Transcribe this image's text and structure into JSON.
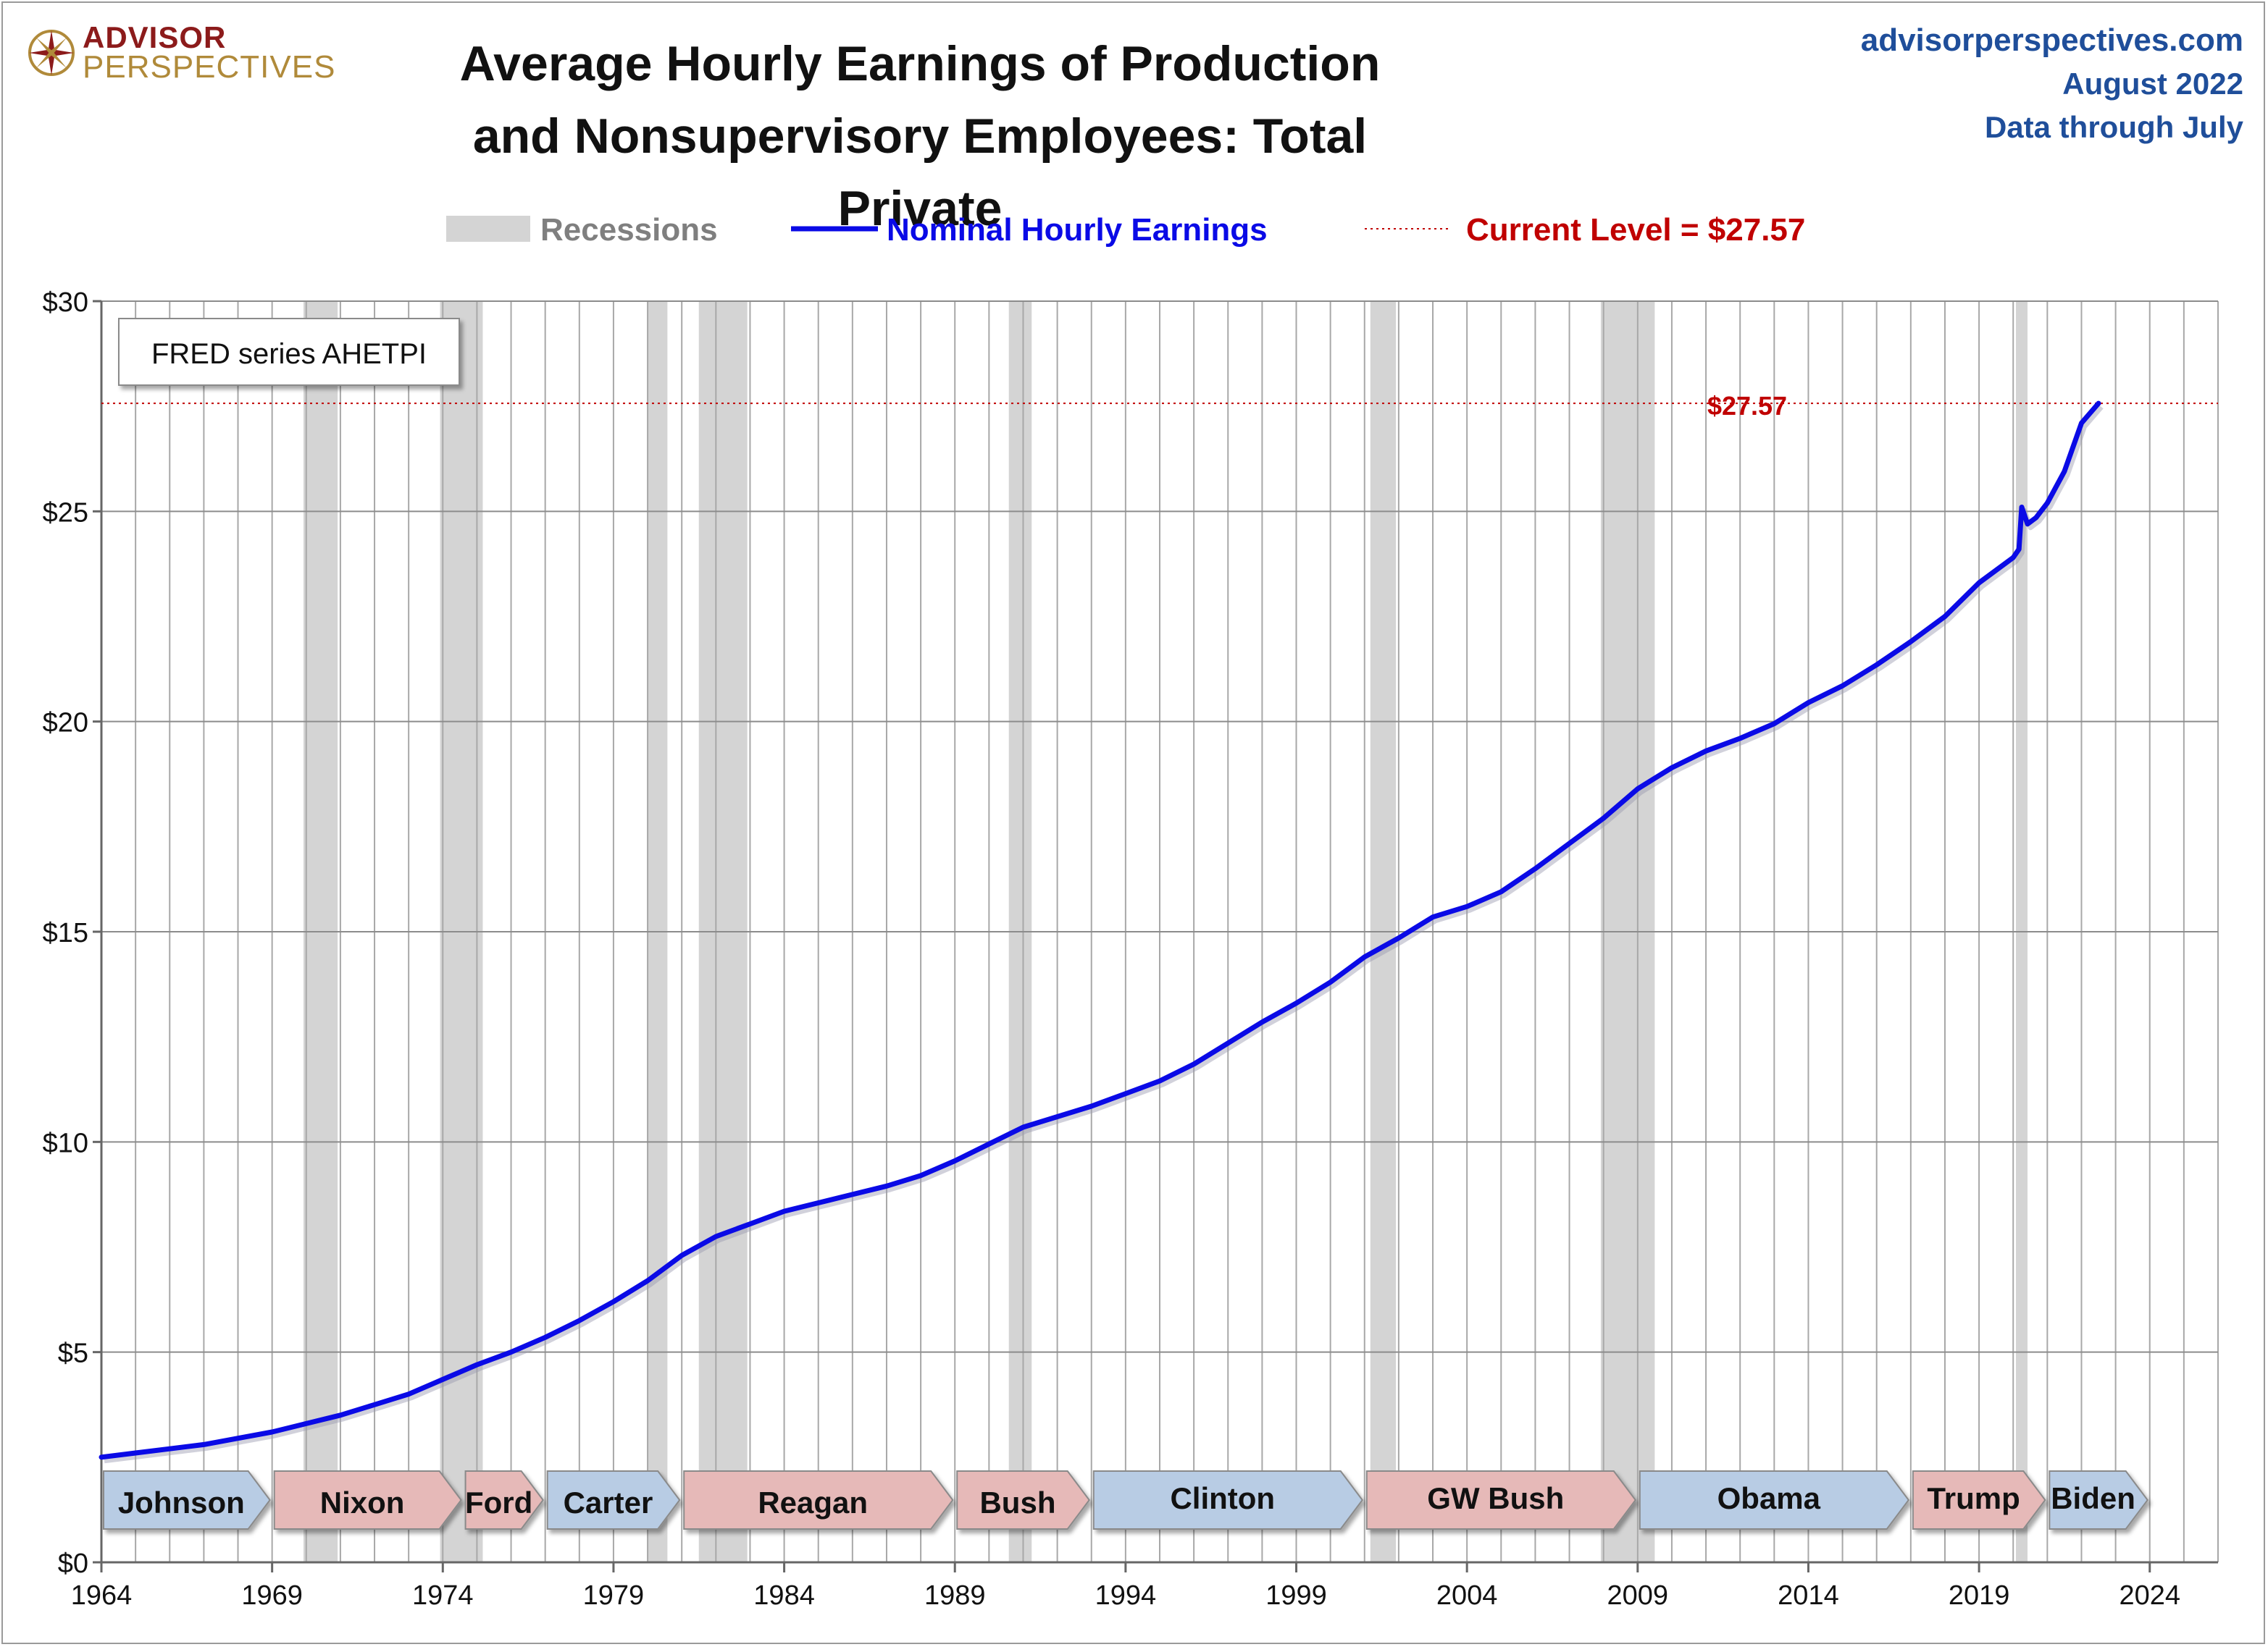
{
  "logo": {
    "line1": "ADVISOR",
    "line2": "PERSPECTIVES"
  },
  "title": {
    "line1": "Average Hourly Earnings of Production",
    "line2": "and Nonsupervisory Employees: Total Private"
  },
  "meta": {
    "site": "advisorperspectives.com",
    "date": "August 2022",
    "data_through": "Data through July"
  },
  "colors": {
    "series": "#0a0ae6",
    "recession": "#d4d4d4",
    "current": "#c00000",
    "blue_president": "#b8cce4",
    "red_president": "#e6b9b8",
    "meta": "#1f4e9a"
  },
  "chart_data": {
    "type": "line",
    "title": "Average Hourly Earnings of Production and Nonsupervisory Employees: Total Private",
    "xlabel": "",
    "ylabel": "",
    "xlim": [
      1964,
      2026
    ],
    "ylim": [
      0,
      30
    ],
    "x_ticks": [
      1964,
      1969,
      1974,
      1979,
      1984,
      1989,
      1994,
      1999,
      2004,
      2009,
      2014,
      2019,
      2024
    ],
    "y_ticks": [
      {
        "value": 0,
        "label": "$0"
      },
      {
        "value": 5,
        "label": "$5"
      },
      {
        "value": 10,
        "label": "$10"
      },
      {
        "value": 15,
        "label": "$15"
      },
      {
        "value": 20,
        "label": "$20"
      },
      {
        "value": 25,
        "label": "$25"
      },
      {
        "value": 30,
        "label": "$30"
      }
    ],
    "vertical_grid_every_years": 1,
    "legend": {
      "recessions": "Recessions",
      "series": "Nominal Hourly Earnings",
      "current": "Current Level = $27.57"
    },
    "source_box": "FRED series AHETPI",
    "current_level": {
      "value": 27.57,
      "label": "$27.57"
    },
    "recessions": [
      [
        1969.92,
        1970.92
      ],
      [
        1973.92,
        1975.17
      ],
      [
        1980.0,
        1980.58
      ],
      [
        1981.5,
        1982.92
      ],
      [
        1990.58,
        1991.25
      ],
      [
        2001.17,
        2001.92
      ],
      [
        2007.92,
        2009.5
      ],
      [
        2020.08,
        2020.42
      ]
    ],
    "series": [
      {
        "name": "Nominal Hourly Earnings",
        "x": [
          1964.0,
          1965.0,
          1966.0,
          1967.0,
          1968.0,
          1969.0,
          1970.0,
          1971.0,
          1972.0,
          1973.0,
          1974.0,
          1975.0,
          1976.0,
          1977.0,
          1978.0,
          1979.0,
          1980.0,
          1981.0,
          1982.0,
          1983.0,
          1984.0,
          1985.0,
          1986.0,
          1987.0,
          1988.0,
          1989.0,
          1990.0,
          1991.0,
          1992.0,
          1993.0,
          1994.0,
          1995.0,
          1996.0,
          1997.0,
          1998.0,
          1999.0,
          2000.0,
          2001.0,
          2002.0,
          2003.0,
          2004.0,
          2005.0,
          2006.0,
          2007.0,
          2008.0,
          2009.0,
          2010.0,
          2011.0,
          2012.0,
          2013.0,
          2014.0,
          2015.0,
          2016.0,
          2017.0,
          2018.0,
          2019.0,
          2020.0,
          2020.17,
          2020.25,
          2020.42,
          2020.67,
          2021.0,
          2021.5,
          2022.0,
          2022.5
        ],
        "values": [
          2.5,
          2.6,
          2.7,
          2.8,
          2.95,
          3.1,
          3.3,
          3.5,
          3.75,
          4.0,
          4.35,
          4.7,
          5.0,
          5.35,
          5.75,
          6.2,
          6.7,
          7.3,
          7.75,
          8.05,
          8.35,
          8.55,
          8.75,
          8.95,
          9.2,
          9.55,
          9.95,
          10.35,
          10.6,
          10.85,
          11.15,
          11.45,
          11.85,
          12.35,
          12.85,
          13.3,
          13.8,
          14.4,
          14.85,
          15.35,
          15.6,
          15.95,
          16.5,
          17.1,
          17.7,
          18.4,
          18.9,
          19.3,
          19.6,
          19.95,
          20.45,
          20.85,
          21.35,
          21.9,
          22.5,
          23.3,
          23.9,
          24.1,
          25.1,
          24.7,
          24.85,
          25.2,
          25.95,
          27.1,
          27.57
        ]
      }
    ],
    "presidents": [
      {
        "name": "Johnson",
        "start": 1964.0,
        "end": 1969.0,
        "party": "D"
      },
      {
        "name": "Nixon",
        "start": 1969.0,
        "end": 1974.6,
        "party": "R"
      },
      {
        "name": "Ford",
        "start": 1974.6,
        "end": 1977.0,
        "party": "R"
      },
      {
        "name": "Carter",
        "start": 1977.0,
        "end": 1981.0,
        "party": "D"
      },
      {
        "name": "Reagan",
        "start": 1981.0,
        "end": 1989.0,
        "party": "R"
      },
      {
        "name": "Bush",
        "start": 1989.0,
        "end": 1993.0,
        "party": "R"
      },
      {
        "name": "Clinton",
        "start": 1993.0,
        "end": 2001.0,
        "party": "D"
      },
      {
        "name": "GW Bush",
        "start": 2001.0,
        "end": 2009.0,
        "party": "R"
      },
      {
        "name": "Obama",
        "start": 2009.0,
        "end": 2017.0,
        "party": "D"
      },
      {
        "name": "Trump",
        "start": 2017.0,
        "end": 2021.0,
        "party": "R"
      },
      {
        "name": "Biden",
        "start": 2021.0,
        "end": 2024.0,
        "party": "D"
      }
    ]
  }
}
